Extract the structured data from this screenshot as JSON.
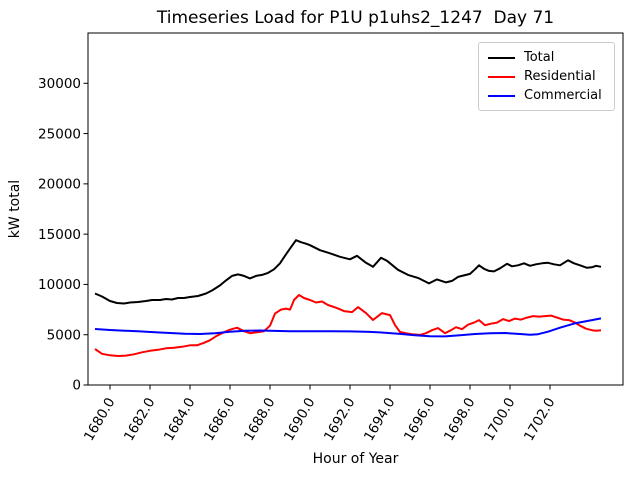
{
  "chart_data": {
    "type": "line",
    "title": "Timeseries Load for P1U p1uhs2_1247  Day 71",
    "xlabel": "Hour of Year",
    "ylabel": "kW total",
    "xlim": [
      1678.9,
      1705.65
    ],
    "ylim": [
      0,
      35000
    ],
    "x_ticks": [
      1680,
      1682,
      1684,
      1686,
      1688,
      1690,
      1692,
      1694,
      1696,
      1698,
      1700,
      1702
    ],
    "x_tick_labels": [
      "1680.0",
      "1682.0",
      "1684.0",
      "1686.0",
      "1688.0",
      "1690.0",
      "1692.0",
      "1694.0",
      "1696.0",
      "1698.0",
      "1700.0",
      "1702.0"
    ],
    "x_tick_rotation_deg": 60,
    "y_ticks": [
      0,
      5000,
      10000,
      15000,
      20000,
      25000,
      30000
    ],
    "y_tick_labels": [
      "0",
      "5000",
      "10000",
      "15000",
      "20000",
      "25000",
      "30000"
    ],
    "grid": false,
    "legend_position": "upper right",
    "frame_color": "#000000",
    "series": [
      {
        "name": "Total",
        "color": "#000000",
        "points": [
          [
            1679.25,
            9100
          ],
          [
            1679.6,
            8800
          ],
          [
            1680.0,
            8350
          ],
          [
            1680.35,
            8150
          ],
          [
            1680.7,
            8100
          ],
          [
            1681.0,
            8200
          ],
          [
            1681.4,
            8250
          ],
          [
            1681.8,
            8350
          ],
          [
            1682.1,
            8450
          ],
          [
            1682.5,
            8450
          ],
          [
            1682.8,
            8550
          ],
          [
            1683.1,
            8500
          ],
          [
            1683.4,
            8650
          ],
          [
            1683.7,
            8650
          ],
          [
            1684.0,
            8750
          ],
          [
            1684.4,
            8850
          ],
          [
            1684.8,
            9100
          ],
          [
            1685.1,
            9400
          ],
          [
            1685.5,
            9900
          ],
          [
            1685.8,
            10400
          ],
          [
            1686.1,
            10850
          ],
          [
            1686.4,
            11000
          ],
          [
            1686.7,
            10850
          ],
          [
            1687.0,
            10600
          ],
          [
            1687.3,
            10850
          ],
          [
            1687.6,
            10950
          ],
          [
            1687.9,
            11150
          ],
          [
            1688.2,
            11500
          ],
          [
            1688.5,
            12100
          ],
          [
            1688.8,
            13000
          ],
          [
            1689.05,
            13700
          ],
          [
            1689.3,
            14400
          ],
          [
            1689.55,
            14200
          ],
          [
            1689.8,
            14050
          ],
          [
            1690.0,
            13900
          ],
          [
            1690.5,
            13400
          ],
          [
            1691.0,
            13100
          ],
          [
            1691.5,
            12750
          ],
          [
            1692.0,
            12500
          ],
          [
            1692.35,
            12850
          ],
          [
            1692.8,
            12150
          ],
          [
            1693.15,
            11750
          ],
          [
            1693.55,
            12650
          ],
          [
            1693.85,
            12350
          ],
          [
            1694.4,
            11450
          ],
          [
            1694.9,
            10950
          ],
          [
            1695.4,
            10650
          ],
          [
            1695.95,
            10100
          ],
          [
            1696.35,
            10500
          ],
          [
            1696.8,
            10200
          ],
          [
            1697.1,
            10350
          ],
          [
            1697.4,
            10750
          ],
          [
            1697.7,
            10900
          ],
          [
            1698.0,
            11050
          ],
          [
            1698.25,
            11500
          ],
          [
            1698.45,
            11900
          ],
          [
            1698.7,
            11550
          ],
          [
            1698.95,
            11350
          ],
          [
            1699.2,
            11300
          ],
          [
            1699.5,
            11600
          ],
          [
            1699.85,
            12050
          ],
          [
            1700.1,
            11800
          ],
          [
            1700.4,
            11900
          ],
          [
            1700.7,
            12100
          ],
          [
            1701.0,
            11850
          ],
          [
            1701.3,
            12000
          ],
          [
            1701.6,
            12100
          ],
          [
            1701.9,
            12150
          ],
          [
            1702.2,
            12000
          ],
          [
            1702.5,
            11900
          ],
          [
            1702.9,
            12400
          ],
          [
            1703.2,
            12100
          ],
          [
            1703.5,
            11900
          ],
          [
            1703.85,
            11650
          ],
          [
            1704.1,
            11700
          ],
          [
            1704.3,
            11850
          ],
          [
            1704.55,
            11750
          ]
        ]
      },
      {
        "name": "Residential",
        "color": "#ff0000",
        "points": [
          [
            1679.25,
            3580
          ],
          [
            1679.6,
            3100
          ],
          [
            1680.0,
            2950
          ],
          [
            1680.4,
            2880
          ],
          [
            1680.8,
            2920
          ],
          [
            1681.2,
            3050
          ],
          [
            1681.6,
            3250
          ],
          [
            1682.0,
            3400
          ],
          [
            1682.4,
            3500
          ],
          [
            1682.8,
            3650
          ],
          [
            1683.2,
            3700
          ],
          [
            1683.6,
            3800
          ],
          [
            1684.0,
            3950
          ],
          [
            1684.35,
            3950
          ],
          [
            1684.7,
            4200
          ],
          [
            1685.0,
            4450
          ],
          [
            1685.35,
            4900
          ],
          [
            1685.7,
            5250
          ],
          [
            1686.0,
            5500
          ],
          [
            1686.35,
            5700
          ],
          [
            1686.7,
            5350
          ],
          [
            1687.0,
            5150
          ],
          [
            1687.35,
            5250
          ],
          [
            1687.7,
            5350
          ],
          [
            1688.0,
            5900
          ],
          [
            1688.25,
            7100
          ],
          [
            1688.55,
            7500
          ],
          [
            1688.8,
            7600
          ],
          [
            1689.0,
            7500
          ],
          [
            1689.2,
            8450
          ],
          [
            1689.45,
            8950
          ],
          [
            1689.7,
            8650
          ],
          [
            1690.0,
            8450
          ],
          [
            1690.3,
            8200
          ],
          [
            1690.6,
            8300
          ],
          [
            1690.9,
            7950
          ],
          [
            1691.35,
            7650
          ],
          [
            1691.7,
            7350
          ],
          [
            1692.1,
            7250
          ],
          [
            1692.4,
            7750
          ],
          [
            1692.8,
            7150
          ],
          [
            1693.15,
            6460
          ],
          [
            1693.6,
            7150
          ],
          [
            1694.0,
            6950
          ],
          [
            1694.25,
            5960
          ],
          [
            1694.5,
            5270
          ],
          [
            1694.8,
            5150
          ],
          [
            1695.1,
            5050
          ],
          [
            1695.5,
            4980
          ],
          [
            1695.8,
            5150
          ],
          [
            1696.1,
            5450
          ],
          [
            1696.4,
            5660
          ],
          [
            1696.75,
            5150
          ],
          [
            1697.05,
            5450
          ],
          [
            1697.3,
            5750
          ],
          [
            1697.6,
            5550
          ],
          [
            1697.9,
            6000
          ],
          [
            1698.2,
            6200
          ],
          [
            1698.45,
            6450
          ],
          [
            1698.75,
            5950
          ],
          [
            1699.05,
            6100
          ],
          [
            1699.35,
            6200
          ],
          [
            1699.65,
            6550
          ],
          [
            1699.95,
            6350
          ],
          [
            1700.25,
            6600
          ],
          [
            1700.55,
            6500
          ],
          [
            1700.85,
            6700
          ],
          [
            1701.15,
            6850
          ],
          [
            1701.45,
            6800
          ],
          [
            1701.75,
            6850
          ],
          [
            1702.05,
            6900
          ],
          [
            1702.35,
            6700
          ],
          [
            1702.65,
            6500
          ],
          [
            1702.95,
            6450
          ],
          [
            1703.25,
            6200
          ],
          [
            1703.5,
            5900
          ],
          [
            1703.8,
            5600
          ],
          [
            1704.1,
            5450
          ],
          [
            1704.3,
            5400
          ],
          [
            1704.55,
            5450
          ]
        ]
      },
      {
        "name": "Commercial",
        "color": "#0000ff",
        "points": [
          [
            1679.25,
            5570
          ],
          [
            1680.0,
            5470
          ],
          [
            1680.75,
            5400
          ],
          [
            1681.5,
            5330
          ],
          [
            1682.25,
            5250
          ],
          [
            1683.0,
            5170
          ],
          [
            1683.75,
            5100
          ],
          [
            1684.5,
            5070
          ],
          [
            1685.25,
            5150
          ],
          [
            1686.0,
            5300
          ],
          [
            1686.75,
            5400
          ],
          [
            1687.5,
            5420
          ],
          [
            1688.25,
            5380
          ],
          [
            1689.0,
            5350
          ],
          [
            1690.0,
            5350
          ],
          [
            1691.0,
            5350
          ],
          [
            1692.0,
            5330
          ],
          [
            1693.0,
            5280
          ],
          [
            1693.75,
            5200
          ],
          [
            1694.5,
            5080
          ],
          [
            1695.25,
            4950
          ],
          [
            1696.0,
            4850
          ],
          [
            1696.75,
            4830
          ],
          [
            1697.5,
            4950
          ],
          [
            1698.25,
            5070
          ],
          [
            1699.0,
            5150
          ],
          [
            1699.75,
            5170
          ],
          [
            1700.5,
            5070
          ],
          [
            1701.0,
            5000
          ],
          [
            1701.4,
            5050
          ],
          [
            1701.9,
            5300
          ],
          [
            1702.5,
            5700
          ],
          [
            1702.95,
            5960
          ],
          [
            1703.3,
            6150
          ],
          [
            1703.7,
            6300
          ],
          [
            1704.1,
            6450
          ],
          [
            1704.55,
            6620
          ]
        ]
      }
    ]
  }
}
